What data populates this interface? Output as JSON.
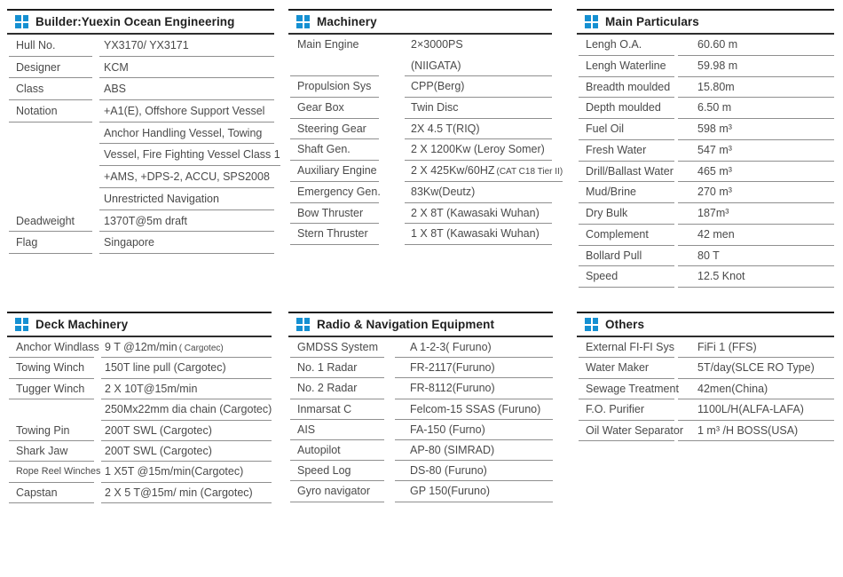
{
  "colors": {
    "accent": "#1590d2",
    "header_line": "#1d1d1d",
    "row_line": "#8f8f8f",
    "text": "#4a4a4a"
  },
  "panels": [
    {
      "id": "builder",
      "title": "Builder:Yuexin Ocean Engineering",
      "rows": [
        {
          "label": "Hull No.",
          "value": "YX3170/ YX3171"
        },
        {
          "label": "Designer",
          "value": "KCM"
        },
        {
          "label": "Class",
          "value": "ABS"
        },
        {
          "label": "Notation",
          "value": "+A1(E), Offshore Support Vessel",
          "extra_lines": [
            "Anchor Handling Vessel, Towing",
            "Vessel, Fire Fighting Vessel Class 1",
            "+AMS, +DPS-2, ACCU, SPS2008",
            "Unrestricted Navigation"
          ]
        },
        {
          "label": "Deadweight",
          "value": "1370T@5m draft"
        },
        {
          "label": "Flag",
          "value": "Singapore"
        }
      ]
    },
    {
      "id": "machinery",
      "title": "Machinery",
      "rows": [
        {
          "label": "Main Engine",
          "value": "2×3000PS",
          "value_line2": "(NIIGATA)"
        },
        {
          "label": "Propulsion Sys",
          "value": "CPP(Berg)"
        },
        {
          "label": "Gear Box",
          "value": "Twin Disc"
        },
        {
          "label": "Steering Gear",
          "value": "2X 4.5 T(RIQ)"
        },
        {
          "label": "Shaft Gen.",
          "value": "2 X 1200Kw (Leroy Somer)"
        },
        {
          "label": "Auxiliary Engine",
          "value": "2 X 425Kw/60HZ",
          "small": "(CAT C18 Tier II)"
        },
        {
          "label": "Emergency Gen.",
          "value": "83Kw(Deutz)"
        },
        {
          "label": "Bow Thruster",
          "value": "2 X 8T (Kawasaki Wuhan)"
        },
        {
          "label": "Stern Thruster",
          "value": "1 X 8T (Kawasaki Wuhan)"
        }
      ]
    },
    {
      "id": "main-particulars",
      "title": "Main Particulars",
      "rows": [
        {
          "label": "Lengh O.A.",
          "value": "60.60 m"
        },
        {
          "label": "Lengh Waterline",
          "value": "59.98 m"
        },
        {
          "label": "Breadth moulded",
          "value": "15.80m"
        },
        {
          "label": "Depth moulded",
          "value": "6.50 m"
        },
        {
          "label": "Fuel Oil",
          "value": "598 m³"
        },
        {
          "label": "Fresh Water",
          "value": "547  m³"
        },
        {
          "label": "Drill/Ballast Water",
          "value": "465 m³"
        },
        {
          "label": "Mud/Brine",
          "value": "270 m³"
        },
        {
          "label": "Dry Bulk",
          "value": "187m³"
        },
        {
          "label": "Complement",
          "value": "42 men"
        },
        {
          "label": "Bollard Pull",
          "value": "80 T"
        },
        {
          "label": "Speed",
          "value": "12.5 Knot"
        }
      ]
    },
    {
      "id": "deck-machinery",
      "title": "Deck Machinery",
      "rows": [
        {
          "label": "Anchor Windlass",
          "value": "9 T @12m/min",
          "small": "( Cargotec)"
        },
        {
          "label": "Towing Winch",
          "value": "150T line pull (Cargotec)"
        },
        {
          "label": "Tugger Winch",
          "value": "2 X 10T@15m/min",
          "extra_lines": [
            "250Mx22mm dia chain (Cargotec)"
          ]
        },
        {
          "label": "Towing Pin",
          "value": "200T SWL (Cargotec)"
        },
        {
          "label": "Shark Jaw",
          "value": "200T SWL (Cargotec)"
        },
        {
          "label": "Rope Reel Winches",
          "value": "1 X5T @15m/min(Cargotec)",
          "small_label": true
        },
        {
          "label": "Capstan",
          "value": "2 X 5  T@15m/ min (Cargotec)"
        }
      ]
    },
    {
      "id": "radio-navigation",
      "title": "Radio & Navigation Equipment",
      "rows": [
        {
          "label": "GMDSS System",
          "value": "A 1-2-3( Furuno)"
        },
        {
          "label": "No. 1 Radar",
          "value": "FR-2117(Furuno)"
        },
        {
          "label": "No. 2 Radar",
          "value": "FR-8112(Furuno)"
        },
        {
          "label": "Inmarsat C",
          "value": "Felcom-15 SSAS (Furuno)"
        },
        {
          "label": "AIS",
          "value": "FA-150  (Furno)"
        },
        {
          "label": "Autopilot",
          "value": "AP-80 (SIMRAD)"
        },
        {
          "label": "Speed Log",
          "value": "DS-80  (Furuno)"
        },
        {
          "label": "Gyro navigator",
          "value": "GP 150(Furuno)"
        }
      ]
    },
    {
      "id": "others",
      "title": "Others",
      "rows": [
        {
          "label": "External FI-FI Sys",
          "value": "FiFi 1 (FFS)"
        },
        {
          "label": "Water Maker",
          "value": "5T/day(SLCE RO Type)"
        },
        {
          "label": "Sewage Treatment",
          "value": "42men(China)"
        },
        {
          "label": "F.O. Purifier",
          "value": "1100L/H(ALFA-LAFA)"
        },
        {
          "label": "Oil Water Separator",
          "value": "1 m³ /H BOSS(USA)"
        }
      ]
    }
  ]
}
